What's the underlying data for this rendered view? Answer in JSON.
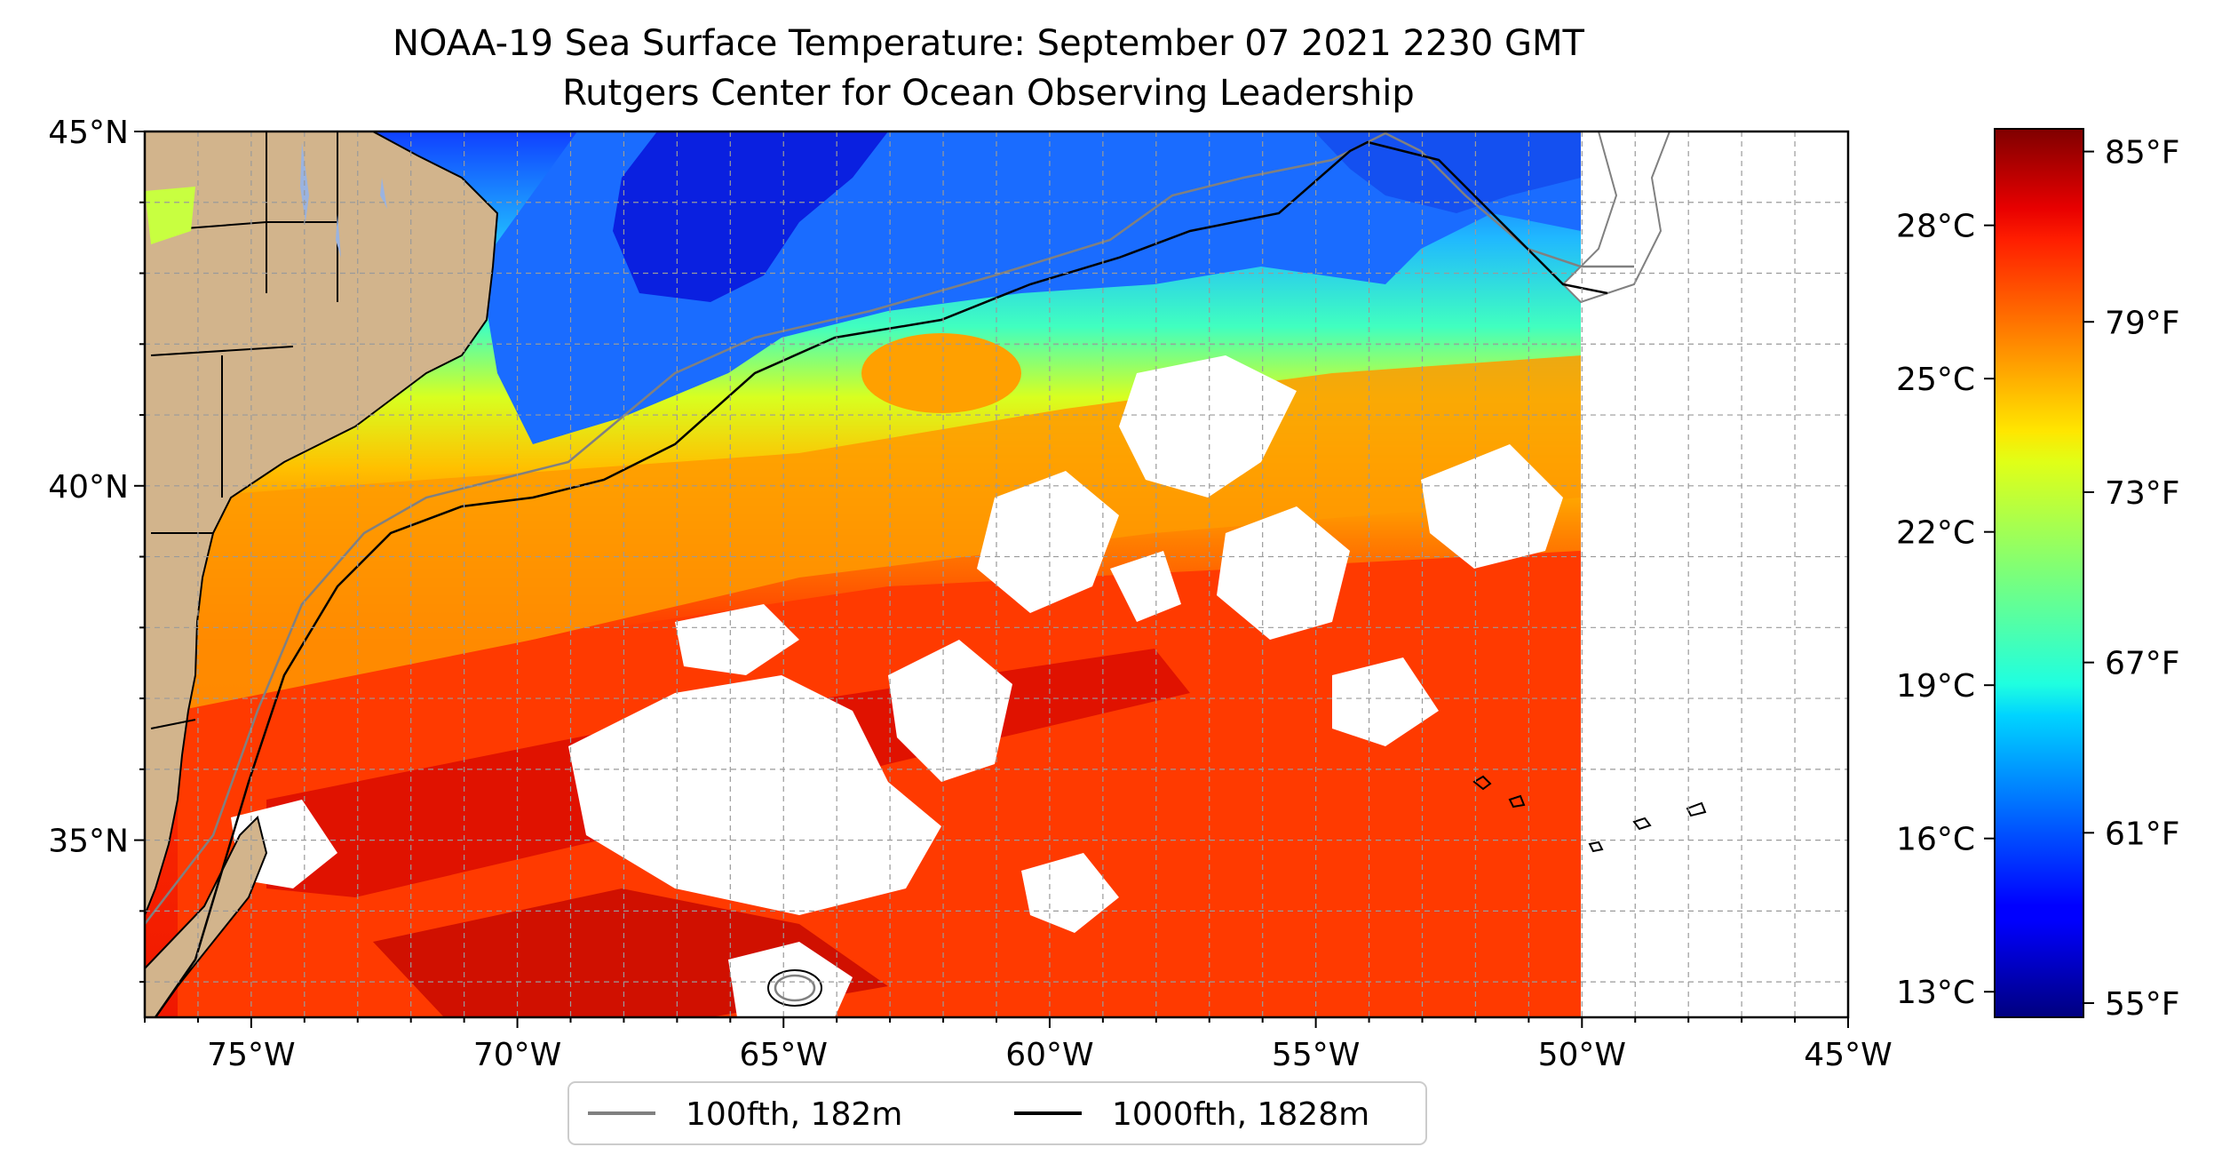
{
  "title": {
    "line1": "NOAA-19 Sea Surface Temperature: September 07 2021 2230 GMT",
    "line2": "Rutgers Center for Ocean Observing Leadership"
  },
  "map": {
    "lon_range": [
      -77,
      -45
    ],
    "lat_range": [
      32.5,
      45
    ],
    "data_east_edge_lon": -50,
    "lon_ticks": [
      {
        "value": -75,
        "label": "75°W"
      },
      {
        "value": -70,
        "label": "70°W"
      },
      {
        "value": -65,
        "label": "65°W"
      },
      {
        "value": -60,
        "label": "60°W"
      },
      {
        "value": -55,
        "label": "55°W"
      },
      {
        "value": -50,
        "label": "50°W"
      },
      {
        "value": -45,
        "label": "45°W"
      }
    ],
    "lat_ticks": [
      {
        "value": 45,
        "label": "45°N"
      },
      {
        "value": 40,
        "label": "40°N"
      },
      {
        "value": 35,
        "label": "35°N"
      }
    ],
    "grid": true,
    "colors": {
      "land": "#d2b48c",
      "lakes": "#9ab3e0",
      "isobath_100": "#808080",
      "isobath_1000": "#000000"
    }
  },
  "legend": {
    "placement": "bottom-center",
    "items": [
      {
        "label": "100fth, 182m",
        "color": "#808080"
      },
      {
        "label": "1000fth, 1828m",
        "color": "#000000"
      }
    ]
  },
  "colorbar": {
    "colormap": "jet",
    "range_f": [
      54.5,
      85.8
    ],
    "fahrenheit_ticks": [
      {
        "value": 85,
        "label": "85°F"
      },
      {
        "value": 79,
        "label": "79°F"
      },
      {
        "value": 73,
        "label": "73°F"
      },
      {
        "value": 67,
        "label": "67°F"
      },
      {
        "value": 61,
        "label": "61°F"
      },
      {
        "value": 55,
        "label": "55°F"
      }
    ],
    "celsius_ticks": [
      {
        "value": 28,
        "label": "28°C"
      },
      {
        "value": 25,
        "label": "25°C"
      },
      {
        "value": 22,
        "label": "22°C"
      },
      {
        "value": 19,
        "label": "19°C"
      },
      {
        "value": 16,
        "label": "16°C"
      },
      {
        "value": 13,
        "label": "13°C"
      }
    ]
  }
}
